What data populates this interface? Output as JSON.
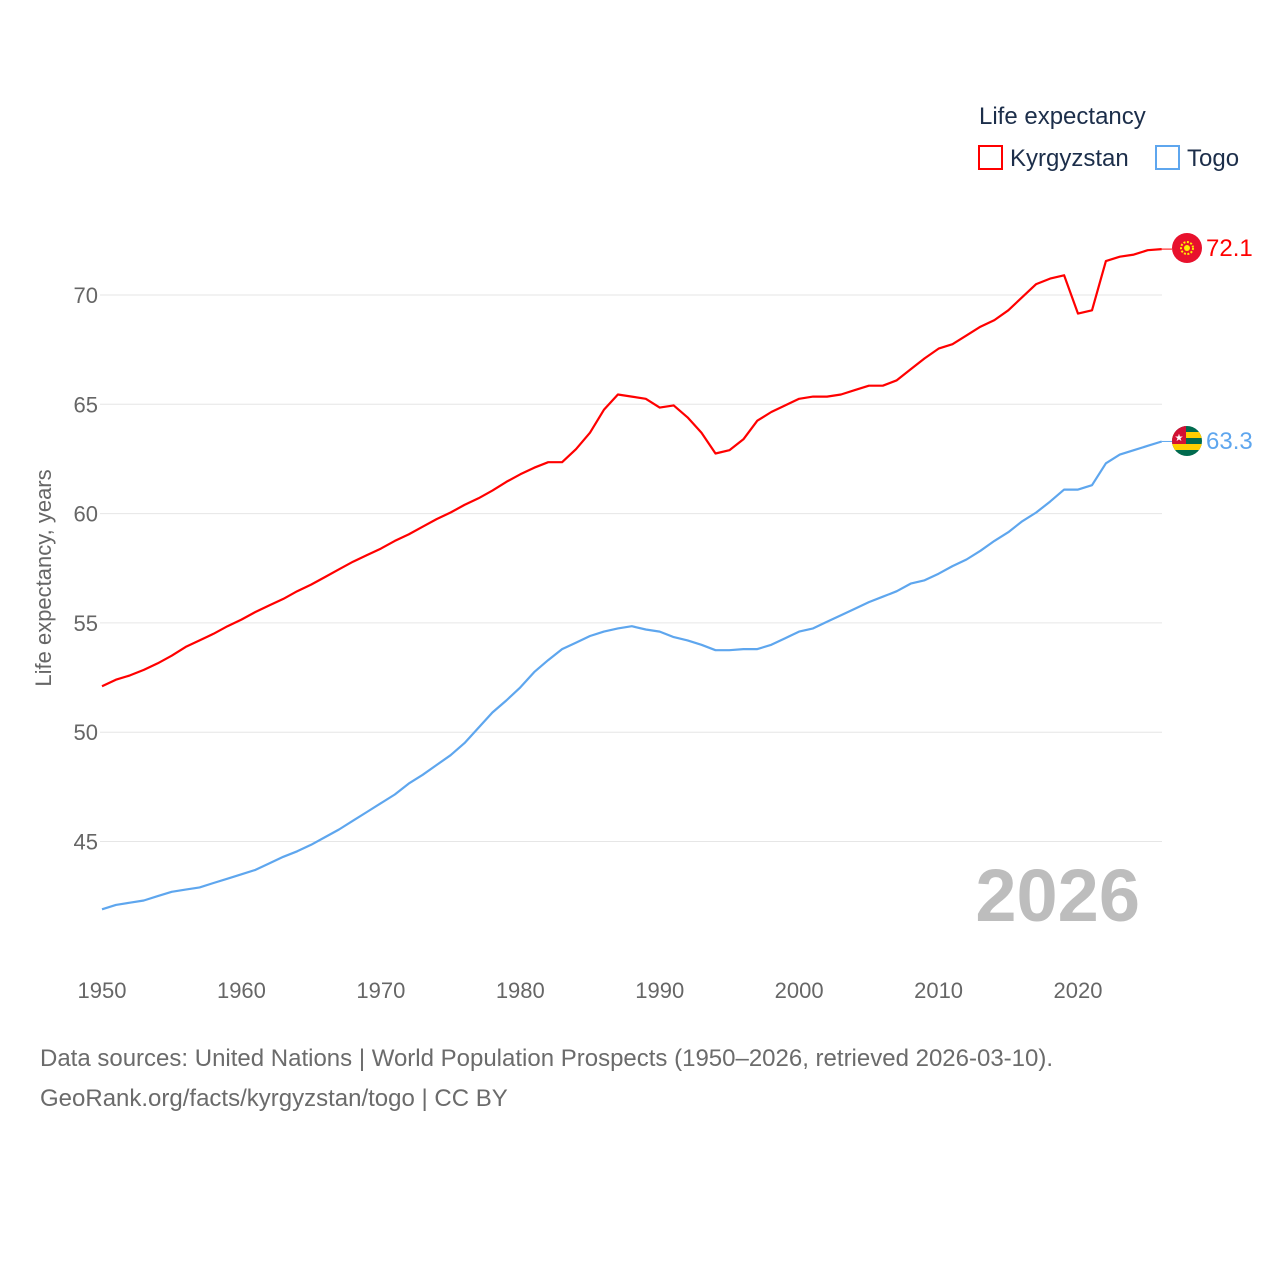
{
  "chart_data": {
    "type": "line",
    "title": "",
    "xlabel": "",
    "ylabel": "Life expectancy, years",
    "xlim": [
      1950,
      2026
    ],
    "ylim": [
      41,
      73
    ],
    "x_ticks": [
      1950,
      1960,
      1970,
      1980,
      1990,
      2000,
      2010,
      2020
    ],
    "y_ticks": [
      45,
      50,
      55,
      60,
      65,
      70
    ],
    "grid": true,
    "legend_title": "Life expectancy",
    "legend_position": "top-right",
    "year_label": "2026",
    "x": [
      1950,
      1951,
      1952,
      1953,
      1954,
      1955,
      1956,
      1957,
      1958,
      1959,
      1960,
      1961,
      1962,
      1963,
      1964,
      1965,
      1966,
      1967,
      1968,
      1969,
      1970,
      1971,
      1972,
      1973,
      1974,
      1975,
      1976,
      1977,
      1978,
      1979,
      1980,
      1981,
      1982,
      1983,
      1984,
      1985,
      1986,
      1987,
      1988,
      1989,
      1990,
      1991,
      1992,
      1993,
      1994,
      1995,
      1996,
      1997,
      1998,
      1999,
      2000,
      2001,
      2002,
      2003,
      2004,
      2005,
      2006,
      2007,
      2008,
      2009,
      2010,
      2011,
      2012,
      2013,
      2014,
      2015,
      2016,
      2017,
      2018,
      2019,
      2020,
      2021,
      2022,
      2023,
      2024,
      2025,
      2026
    ],
    "series": [
      {
        "name": "Kyrgyzstan",
        "color": "#ff0000",
        "end_label": "72.1",
        "values": [
          52.1,
          52.4,
          52.6,
          52.85,
          53.15,
          53.5,
          53.9,
          54.2,
          54.5,
          54.85,
          55.15,
          55.5,
          55.8,
          56.1,
          56.45,
          56.75,
          57.1,
          57.45,
          57.8,
          58.1,
          58.4,
          58.75,
          59.05,
          59.4,
          59.75,
          60.05,
          60.4,
          60.7,
          61.05,
          61.45,
          61.8,
          62.1,
          62.35,
          62.35,
          62.95,
          63.7,
          64.75,
          65.45,
          65.35,
          65.25,
          64.85,
          64.95,
          64.4,
          63.7,
          62.75,
          62.9,
          63.4,
          64.25,
          64.65,
          64.95,
          65.25,
          65.35,
          65.35,
          65.45,
          65.65,
          65.85,
          65.85,
          66.1,
          66.6,
          67.1,
          67.55,
          67.75,
          68.15,
          68.55,
          68.85,
          69.3,
          69.9,
          70.5,
          70.75,
          70.9,
          69.15,
          69.3,
          71.55,
          71.75,
          71.85,
          72.05,
          72.1
        ]
      },
      {
        "name": "Togo",
        "color": "#5ea6ee",
        "end_label": "63.3",
        "values": [
          41.9,
          42.1,
          42.2,
          42.3,
          42.5,
          42.7,
          42.8,
          42.9,
          43.1,
          43.3,
          43.5,
          43.7,
          44.0,
          44.3,
          44.55,
          44.85,
          45.2,
          45.55,
          45.95,
          46.35,
          46.75,
          47.15,
          47.65,
          48.05,
          48.5,
          48.95,
          49.5,
          50.2,
          50.9,
          51.45,
          52.05,
          52.75,
          53.3,
          53.8,
          54.1,
          54.4,
          54.6,
          54.75,
          54.85,
          54.7,
          54.6,
          54.35,
          54.2,
          54.0,
          53.75,
          53.75,
          53.8,
          53.8,
          54.0,
          54.3,
          54.6,
          54.75,
          55.05,
          55.35,
          55.65,
          55.95,
          56.2,
          56.45,
          56.8,
          56.95,
          57.25,
          57.6,
          57.9,
          58.3,
          58.75,
          59.15,
          59.65,
          60.05,
          60.55,
          61.1,
          61.1,
          61.3,
          62.3,
          62.7,
          62.9,
          63.1,
          63.3
        ]
      }
    ]
  },
  "source": {
    "line1": "Data sources: United Nations | World Population Prospects (1950–2026, retrieved 2026-03-10).",
    "line2": "GeoRank.org/facts/kyrgyzstan/togo | CC BY"
  }
}
